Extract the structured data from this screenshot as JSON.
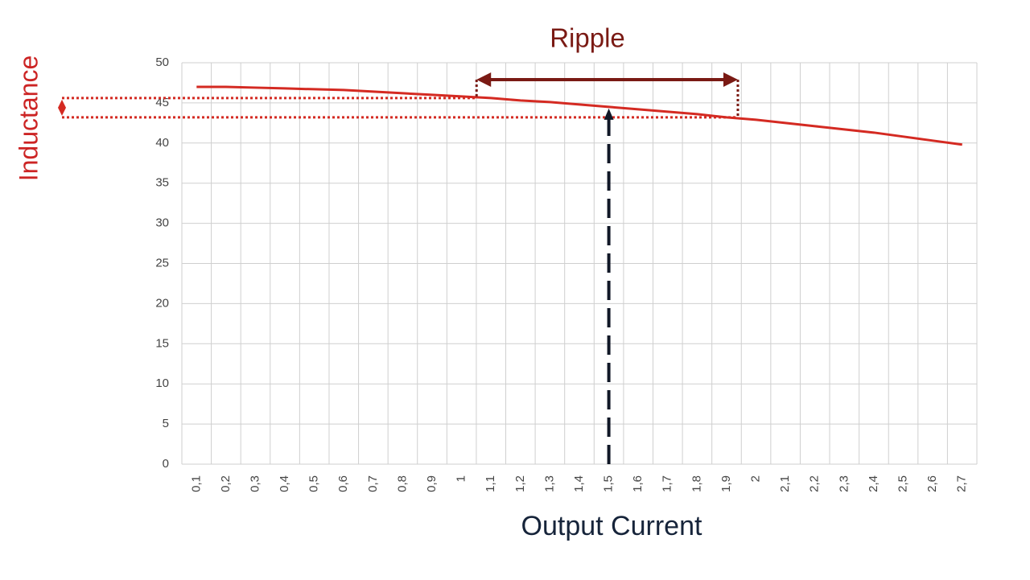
{
  "chart_data": {
    "type": "line",
    "title": "Ripple",
    "y_label": "Inductance",
    "x_label": "Output Current",
    "categories": [
      "0,1",
      "0,2",
      "0,3",
      "0,4",
      "0,5",
      "0,6",
      "0,7",
      "0,8",
      "0,9",
      "1",
      "1,1",
      "1,2",
      "1,3",
      "1,4",
      "1,5",
      "1,6",
      "1,7",
      "1,8",
      "1,9",
      "2",
      "2,1",
      "2,2",
      "2,3",
      "2,4",
      "2,5",
      "2,6",
      "2,7"
    ],
    "values": [
      47,
      47,
      46.9,
      46.8,
      46.7,
      46.6,
      46.4,
      46.2,
      46.0,
      45.8,
      45.6,
      45.3,
      45.1,
      44.8,
      44.5,
      44.2,
      43.9,
      43.6,
      43.2,
      42.9,
      42.5,
      42.1,
      41.7,
      41.3,
      40.8,
      40.3,
      39.8
    ],
    "color": "#d42a22",
    "ylim": [
      0,
      50
    ],
    "yticks": [
      0,
      5,
      10,
      15,
      20,
      25,
      30,
      35,
      40,
      45,
      50
    ],
    "grid": true
  }
}
